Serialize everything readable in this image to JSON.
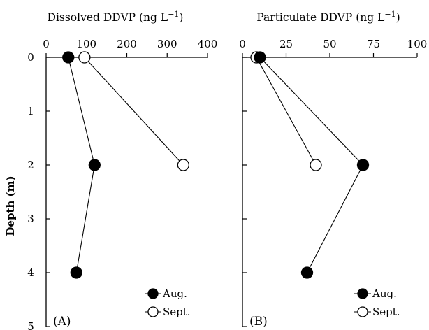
{
  "chart_data": [
    {
      "type": "line",
      "panel_label": "(A)",
      "title": "Dissolved DDVP (ng L",
      "title_sup": "−1",
      "title_close": ")",
      "xlabel": "Dissolved DDVP (ng L⁻¹)",
      "ylabel": "Depth (m)",
      "xlim": [
        0,
        400
      ],
      "ylim": [
        0,
        5
      ],
      "x_ticks": [
        0,
        100,
        200,
        300,
        400
      ],
      "y_ticks": [
        0,
        1,
        2,
        3,
        4,
        5
      ],
      "y_axis_inverted": true,
      "x_axis_position": "top",
      "grid": false,
      "legend_position": "bottom-right",
      "series": [
        {
          "name": "Aug.",
          "marker": "filled-circle",
          "points": [
            {
              "x": 55,
              "y": 0
            },
            {
              "x": 120,
              "y": 2
            },
            {
              "x": 75,
              "y": 4
            }
          ]
        },
        {
          "name": "Sept.",
          "marker": "open-circle",
          "points": [
            {
              "x": 95,
              "y": 0
            },
            {
              "x": 340,
              "y": 2
            }
          ]
        }
      ]
    },
    {
      "type": "line",
      "panel_label": "(B)",
      "title": "Particulate DDVP (ng L",
      "title_sup": "−1",
      "title_close": ")",
      "xlabel": "Particulate DDVP (ng L⁻¹)",
      "ylabel": "",
      "xlim": [
        0,
        100
      ],
      "ylim": [
        0,
        5
      ],
      "x_ticks": [
        0,
        25,
        50,
        75,
        100
      ],
      "y_ticks": [
        0,
        1,
        2,
        3,
        4,
        5
      ],
      "y_axis_inverted": true,
      "x_axis_position": "top",
      "grid": false,
      "legend_position": "bottom-right",
      "series": [
        {
          "name": "Aug.",
          "marker": "filled-circle",
          "points": [
            {
              "x": 10,
              "y": 0
            },
            {
              "x": 69,
              "y": 2
            },
            {
              "x": 37,
              "y": 4
            }
          ]
        },
        {
          "name": "Sept.",
          "marker": "open-circle",
          "points": [
            {
              "x": 8,
              "y": 0
            },
            {
              "x": 42,
              "y": 2
            }
          ]
        }
      ]
    }
  ]
}
